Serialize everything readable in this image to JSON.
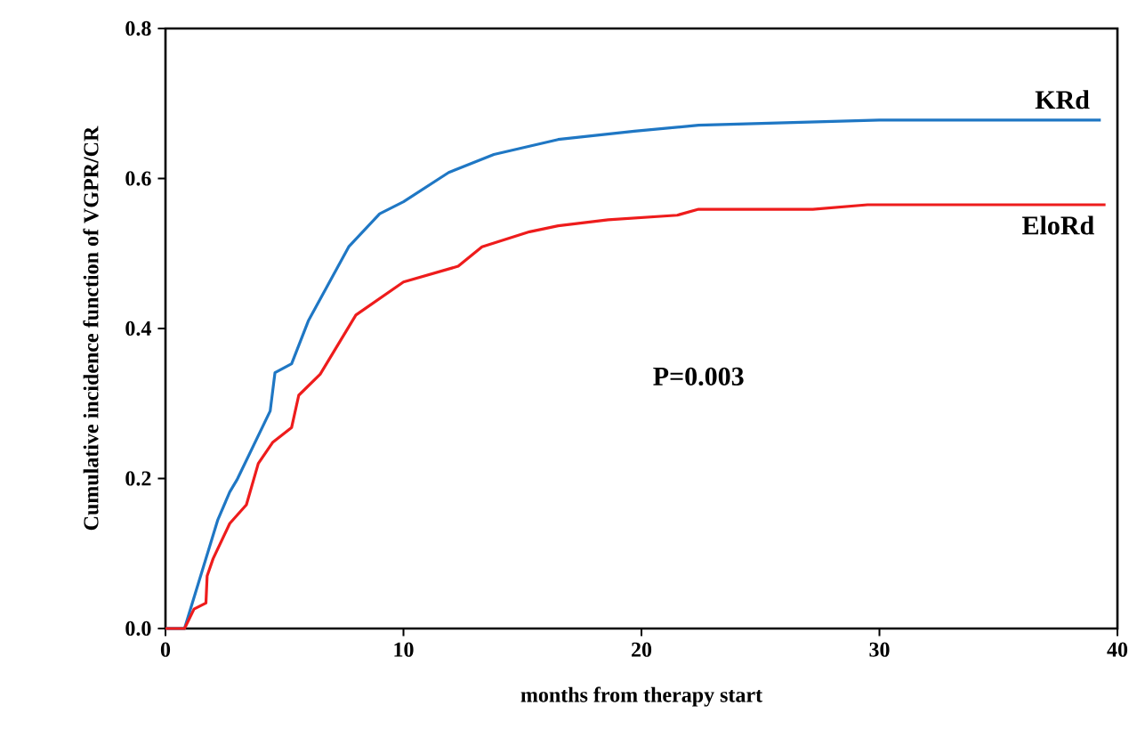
{
  "chart_data": {
    "type": "line",
    "xlabel": "months from therapy start",
    "ylabel": "Cumulative incidence function of VGPR/CR",
    "xlim": [
      0,
      40
    ],
    "xticks": [
      0,
      10,
      20,
      30,
      40
    ],
    "ylim": [
      0,
      0.8
    ],
    "yticks": [
      {
        "value": 0,
        "label": "0.0"
      },
      {
        "value": 0.2,
        "label": "0.2"
      },
      {
        "value": 0.4,
        "label": "0.4"
      },
      {
        "value": 0.6,
        "label": "0.6"
      },
      {
        "value": 0.8,
        "label": "0.8"
      }
    ],
    "grid": false,
    "legend": false,
    "marker": "none",
    "line_style": "solid",
    "annotations": [
      "P=0.003"
    ],
    "series": [
      {
        "name": "KRd",
        "color": "#1f77c4",
        "x": [
          0,
          0.8,
          2.2,
          2.7,
          3.0,
          4.4,
          4.6,
          5.3,
          6.0,
          7.7,
          9.0,
          10,
          11.9,
          13.8,
          16.5,
          19.7,
          22.4,
          30,
          39.3
        ],
        "values": [
          0,
          0,
          0.145,
          0.182,
          0.198,
          0.29,
          0.341,
          0.353,
          0.41,
          0.509,
          0.553,
          0.569,
          0.608,
          0.632,
          0.652,
          0.663,
          0.671,
          0.678,
          0.678
        ]
      },
      {
        "name": "EloRd",
        "color": "#ee1c1c",
        "x": [
          0,
          0.8,
          1.2,
          1.7,
          1.75,
          2.0,
          2.7,
          3.4,
          3.9,
          4.5,
          5.3,
          5.6,
          6.5,
          8.0,
          10,
          12.3,
          13.3,
          15.3,
          16.5,
          18.6,
          21.5,
          22.4,
          27.2,
          29.5,
          39.5
        ],
        "values": [
          0,
          0,
          0.026,
          0.034,
          0.07,
          0.093,
          0.14,
          0.165,
          0.22,
          0.248,
          0.268,
          0.311,
          0.339,
          0.418,
          0.462,
          0.483,
          0.509,
          0.529,
          0.537,
          0.545,
          0.551,
          0.559,
          0.559,
          0.565,
          0.565
        ]
      }
    ]
  }
}
